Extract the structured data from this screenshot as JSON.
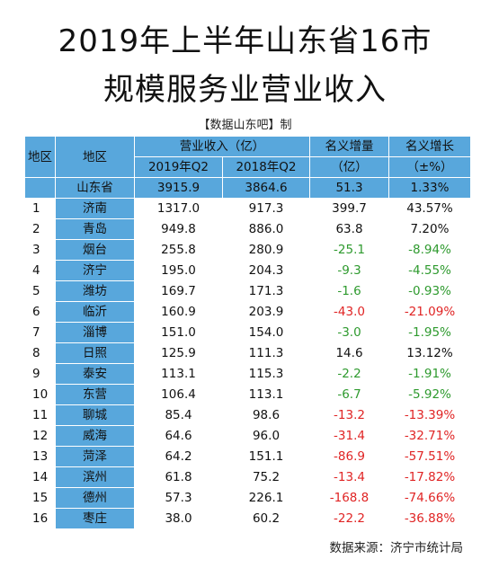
{
  "title_line1": "2019年上半年山东省16市",
  "title_line2": "规模服务业营业收入",
  "credit": "【数据山东吧】制",
  "headers": {
    "col_index": "地区",
    "col_region": "地区",
    "col_revenue": "营业收入（亿）",
    "col_2019": "2019年Q2",
    "col_2018": "2018年Q2",
    "col_increase": "名义增量",
    "col_increase_unit": "（亿）",
    "col_growth": "名义增长",
    "col_growth_unit": "（±%）"
  },
  "province": {
    "name": "山东省",
    "q2_2019": "3915.9",
    "q2_2018": "3864.6",
    "increase": "51.3",
    "growth": "1.33%"
  },
  "rows": [
    {
      "idx": "1",
      "city": "济南",
      "q2_2019": "1317.0",
      "q2_2018": "917.3",
      "increase": "399.7",
      "growth": "43.57%"
    },
    {
      "idx": "2",
      "city": "青岛",
      "q2_2019": "949.8",
      "q2_2018": "886.0",
      "increase": "63.8",
      "growth": "7.20%"
    },
    {
      "idx": "3",
      "city": "烟台",
      "q2_2019": "255.8",
      "q2_2018": "280.9",
      "increase": "-25.1",
      "growth": "-8.94%"
    },
    {
      "idx": "4",
      "city": "济宁",
      "q2_2019": "195.0",
      "q2_2018": "204.3",
      "increase": "-9.3",
      "growth": "-4.55%"
    },
    {
      "idx": "5",
      "city": "潍坊",
      "q2_2019": "169.7",
      "q2_2018": "171.3",
      "increase": "-1.6",
      "growth": "-0.93%"
    },
    {
      "idx": "6",
      "city": "临沂",
      "q2_2019": "160.9",
      "q2_2018": "203.9",
      "increase": "-43.0",
      "growth": "-21.09%"
    },
    {
      "idx": "7",
      "city": "淄博",
      "q2_2019": "151.0",
      "q2_2018": "154.0",
      "increase": "-3.0",
      "growth": "-1.95%"
    },
    {
      "idx": "8",
      "city": "日照",
      "q2_2019": "125.9",
      "q2_2018": "111.3",
      "increase": "14.6",
      "growth": "13.12%"
    },
    {
      "idx": "9",
      "city": "泰安",
      "q2_2019": "113.1",
      "q2_2018": "115.3",
      "increase": "-2.2",
      "growth": "-1.91%"
    },
    {
      "idx": "10",
      "city": "东营",
      "q2_2019": "106.4",
      "q2_2018": "113.1",
      "increase": "-6.7",
      "growth": "-5.92%"
    },
    {
      "idx": "11",
      "city": "聊城",
      "q2_2019": "85.4",
      "q2_2018": "98.6",
      "increase": "-13.2",
      "growth": "-13.39%"
    },
    {
      "idx": "12",
      "city": "威海",
      "q2_2019": "64.6",
      "q2_2018": "96.0",
      "increase": "-31.4",
      "growth": "-32.71%"
    },
    {
      "idx": "13",
      "city": "菏泽",
      "q2_2019": "64.2",
      "q2_2018": "151.1",
      "increase": "-86.9",
      "growth": "-57.51%"
    },
    {
      "idx": "14",
      "city": "滨州",
      "q2_2019": "61.8",
      "q2_2018": "75.2",
      "increase": "-13.4",
      "growth": "-17.82%"
    },
    {
      "idx": "15",
      "city": "德州",
      "q2_2019": "57.3",
      "q2_2018": "226.1",
      "increase": "-168.8",
      "growth": "-74.66%"
    },
    {
      "idx": "16",
      "city": "枣庄",
      "q2_2019": "38.0",
      "q2_2018": "60.2",
      "increase": "-22.2",
      "growth": "-36.88%"
    }
  ],
  "colors": {
    "header_bg": "#58a7dc",
    "negative_small": "#2e9a2e",
    "negative_large": "#e02424"
  },
  "source": "数据来源：济宁市统计局"
}
